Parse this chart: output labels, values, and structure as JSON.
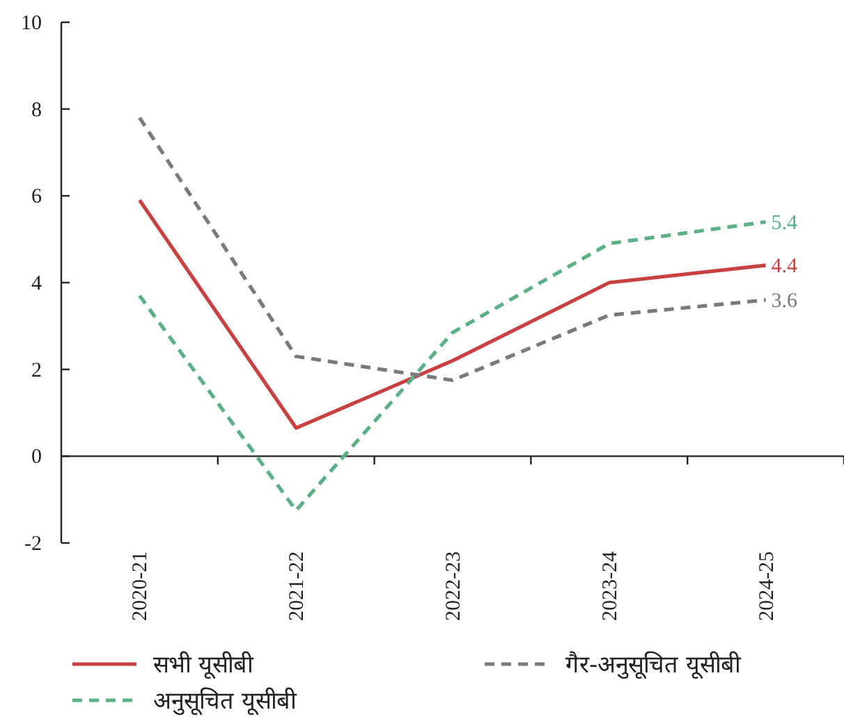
{
  "chart_data": {
    "type": "line",
    "categories": [
      "2020-21",
      "2021-22",
      "2022-23",
      "2023-24",
      "2024-25"
    ],
    "series": [
      {
        "name": "सभी यूसीबी",
        "color": "#c8403f",
        "line_style": "solid",
        "values": [
          5.9,
          0.65,
          2.2,
          4.0,
          4.4
        ],
        "value_labels": [
          null,
          null,
          null,
          null,
          "4.4"
        ]
      },
      {
        "name": "अनुसूचित यूसीबी",
        "color": "#5bb085",
        "line_style": "dashed",
        "values": [
          3.7,
          -1.25,
          2.85,
          4.9,
          5.4
        ],
        "value_labels": [
          null,
          null,
          null,
          null,
          "5.4"
        ]
      },
      {
        "name": "गैर-अनुसूचित यूसीबी",
        "color": "#7a7a7a",
        "line_style": "dashed",
        "values": [
          7.8,
          2.3,
          1.75,
          3.25,
          3.6
        ],
        "value_labels": [
          null,
          null,
          null,
          null,
          "3.6"
        ]
      }
    ],
    "ylim": [
      -2,
      10
    ],
    "yticks": [
      -2,
      0,
      2,
      4,
      6,
      8,
      10
    ],
    "legend": "bottom"
  }
}
